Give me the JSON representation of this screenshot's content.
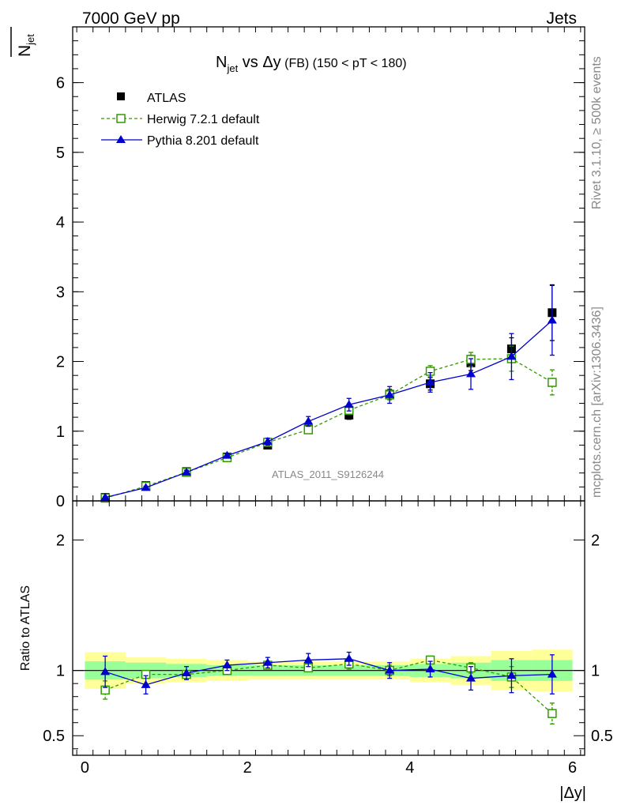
{
  "header": {
    "left": "7000 GeV pp",
    "right": "Jets"
  },
  "title": {
    "n": "N",
    "n_sub": "jet",
    "vs": " vs ",
    "delta_y": "Δy",
    "fb": " (FB) ",
    "cut": "(150 < pT < 180)"
  },
  "ylabel_top": {
    "n": "N",
    "sub": "jet"
  },
  "ylabel_bottom": "Ratio to ATLAS",
  "xlabel": "|Δy|",
  "watermark": "ATLAS_2011_S9126244",
  "side_rivet": "Rivet 3.1.10, ≥ 500k events",
  "side_mcplots": "mcplots.cern.ch [arXiv:1306.3436]",
  "legend": {
    "atlas": "ATLAS",
    "herwig": "Herwig 7.2.1 default",
    "pythia": "Pythia 8.201 default"
  },
  "colors": {
    "atlas": "#000000",
    "herwig": "#339900",
    "pythia": "#0000cc",
    "band_inner": "#99ff99",
    "band_outer": "#ffff99"
  },
  "chart_data": [
    {
      "type": "scatter",
      "panel": "main",
      "x_bins": [
        0,
        0.5,
        1.0,
        1.5,
        2.0,
        2.5,
        3.0,
        3.5,
        4.0,
        4.5,
        5.0,
        5.5,
        6.0
      ],
      "x": [
        0.25,
        0.75,
        1.25,
        1.75,
        2.25,
        2.75,
        3.25,
        3.75,
        4.25,
        4.75,
        5.25,
        5.75
      ],
      "xlim": [
        -0.15,
        6.15
      ],
      "ylim": [
        0,
        6.8
      ],
      "yticks": [
        0,
        1,
        2,
        3,
        4,
        5,
        6
      ],
      "ytick_labels": [
        "0",
        "1",
        "2",
        "3",
        "4",
        "5",
        "6"
      ],
      "series": [
        {
          "name": "ATLAS",
          "style": "square-filled",
          "values": [
            0.05,
            0.22,
            0.42,
            0.63,
            0.8,
            1.03,
            1.23,
            1.53,
            1.68,
            1.98,
            2.18,
            2.7
          ],
          "errors": [
            0.01,
            0.02,
            0.03,
            0.03,
            0.04,
            0.05,
            0.06,
            0.07,
            0.09,
            0.11,
            0.16,
            0.4
          ]
        },
        {
          "name": "Herwig 7.2.1 default",
          "style": "square-open-dashed",
          "values": [
            0.04,
            0.21,
            0.41,
            0.62,
            0.84,
            1.02,
            1.3,
            1.52,
            1.86,
            2.03,
            2.04,
            1.7
          ],
          "errors": [
            0.01,
            0.02,
            0.03,
            0.03,
            0.04,
            0.05,
            0.06,
            0.07,
            0.08,
            0.1,
            0.18,
            0.18
          ]
        },
        {
          "name": "Pythia 8.201 default",
          "style": "triangle-filled-solid",
          "values": [
            0.05,
            0.19,
            0.41,
            0.65,
            0.85,
            1.14,
            1.38,
            1.52,
            1.7,
            1.82,
            2.07,
            2.59
          ],
          "errors": [
            0.01,
            0.02,
            0.03,
            0.03,
            0.05,
            0.07,
            0.09,
            0.12,
            0.14,
            0.22,
            0.33,
            0.5
          ]
        }
      ]
    },
    {
      "type": "scatter",
      "panel": "ratio",
      "x": [
        0.25,
        0.75,
        1.25,
        1.75,
        2.25,
        2.75,
        3.25,
        3.75,
        4.25,
        4.75,
        5.25,
        5.75
      ],
      "xlim": [
        -0.15,
        6.15
      ],
      "ylim": [
        0.35,
        2.3
      ],
      "xticks": [
        0,
        2,
        4,
        6
      ],
      "xtick_labels": [
        "0",
        "2",
        "4",
        "6"
      ],
      "yticks": [
        0.5,
        1,
        2
      ],
      "ytick_labels": [
        "0.5",
        "1",
        "2"
      ],
      "band_inner": [
        0.07,
        0.06,
        0.05,
        0.04,
        0.04,
        0.04,
        0.04,
        0.04,
        0.05,
        0.06,
        0.08,
        0.08
      ],
      "band_outer": [
        0.14,
        0.1,
        0.09,
        0.08,
        0.07,
        0.07,
        0.07,
        0.07,
        0.09,
        0.11,
        0.15,
        0.16
      ],
      "series": [
        {
          "name": "Herwig 7.2.1 default",
          "style": "square-open-dashed",
          "values": [
            0.85,
            0.97,
            0.97,
            1.0,
            1.04,
            1.02,
            1.05,
            1.0,
            1.08,
            1.02,
            0.95,
            0.67
          ],
          "errors": [
            0.07,
            0.03,
            0.03,
            0.03,
            0.03,
            0.03,
            0.04,
            0.04,
            0.03,
            0.04,
            0.08,
            0.08
          ]
        },
        {
          "name": "Pythia 8.201 default",
          "style": "triangle-filled-solid",
          "values": [
            0.99,
            0.89,
            0.98,
            1.04,
            1.06,
            1.08,
            1.09,
            1.0,
            1.01,
            0.94,
            0.96,
            0.97
          ],
          "errors": [
            0.12,
            0.07,
            0.05,
            0.04,
            0.04,
            0.05,
            0.05,
            0.06,
            0.06,
            0.09,
            0.13,
            0.15
          ]
        }
      ]
    }
  ]
}
